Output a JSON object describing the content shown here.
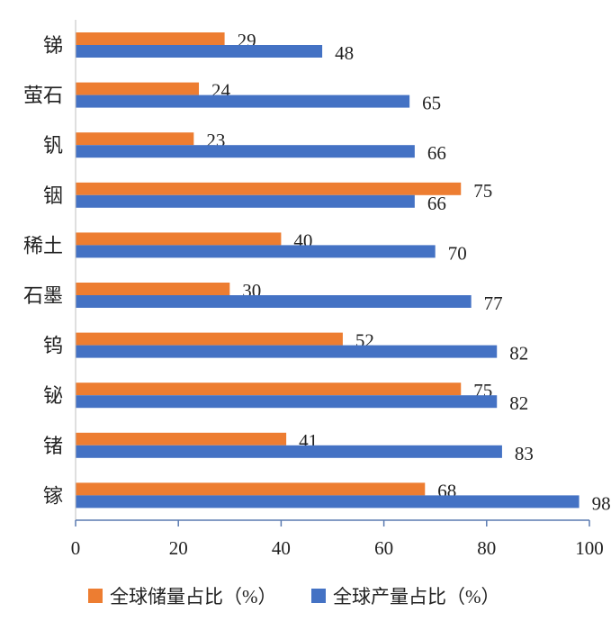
{
  "chart_data": {
    "type": "bar",
    "orientation": "horizontal",
    "categories": [
      "锑",
      "萤石",
      "钒",
      "铟",
      "稀土",
      "石墨",
      "钨",
      "铋",
      "锗",
      "镓"
    ],
    "series": [
      {
        "name": "全球储量占比（%）",
        "color": "#ED7D31",
        "values": [
          29,
          24,
          23,
          75,
          40,
          30,
          52,
          75,
          41,
          68
        ]
      },
      {
        "name": "全球产量占比（%）",
        "color": "#4472C4",
        "values": [
          48,
          65,
          66,
          66,
          70,
          77,
          82,
          82,
          83,
          98
        ]
      }
    ],
    "xlim": [
      0,
      100
    ],
    "xticks": [
      0,
      20,
      40,
      60,
      80,
      100
    ],
    "grid": false,
    "legend": "bottom",
    "data_labels": true
  }
}
